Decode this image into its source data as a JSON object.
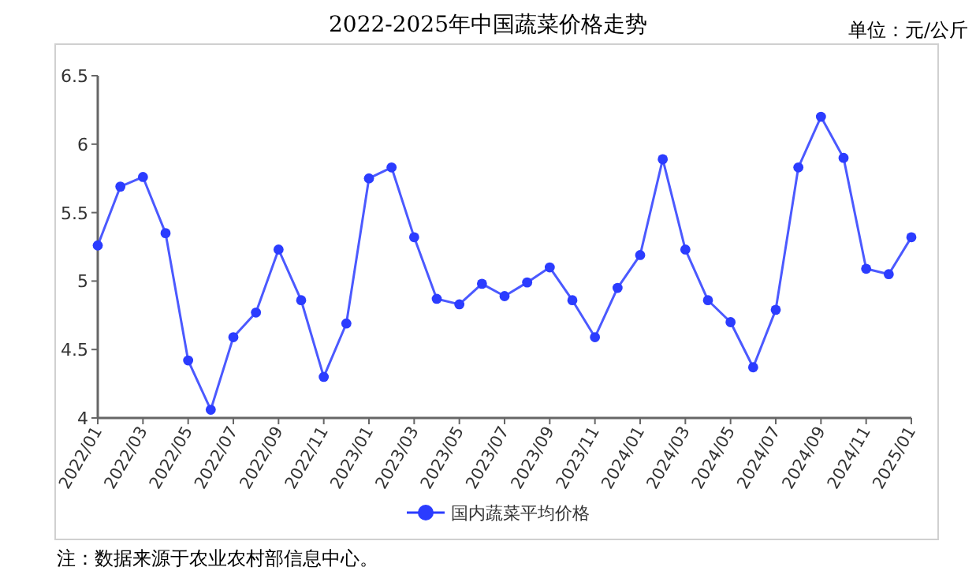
{
  "chart_data": {
    "type": "line",
    "title": "2022-2025年中国蔬菜价格走势",
    "annotations": [
      "单位：元/公斤",
      "注：数据来源于农业农村部信息中心。"
    ],
    "categories": [
      "2022/01",
      null,
      "2022/03",
      null,
      "2022/05",
      null,
      "2022/07",
      null,
      "2022/09",
      null,
      "2022/11",
      null,
      "2023/01",
      null,
      "2023/03",
      null,
      "2023/05",
      null,
      "2023/07",
      null,
      "2023/09",
      null,
      "2023/11",
      null,
      "2024/01",
      null,
      "2024/03",
      null,
      "2024/05",
      null,
      "2024/07",
      null,
      "2024/09",
      null,
      "2024/11",
      null,
      "2025/01"
    ],
    "series": [
      {
        "name": "国内蔬菜平均价格",
        "color": "#2b3cff",
        "values": [
          5.26,
          5.69,
          5.76,
          5.35,
          4.42,
          4.06,
          4.59,
          4.77,
          5.23,
          4.86,
          4.3,
          4.69,
          5.75,
          5.83,
          5.32,
          4.87,
          4.83,
          4.98,
          4.89,
          4.99,
          5.1,
          4.86,
          4.59,
          4.95,
          5.19,
          5.89,
          5.23,
          4.86,
          4.7,
          4.37,
          4.79,
          5.83,
          6.2,
          5.9,
          5.09,
          5.05,
          5.32
        ]
      }
    ],
    "ylim": [
      4,
      6.5
    ],
    "yticks": [
      4,
      4.5,
      5,
      5.5,
      6,
      6.5
    ],
    "grid": false,
    "legend": "bottom",
    "marker": "circle",
    "line_style": "solid"
  }
}
